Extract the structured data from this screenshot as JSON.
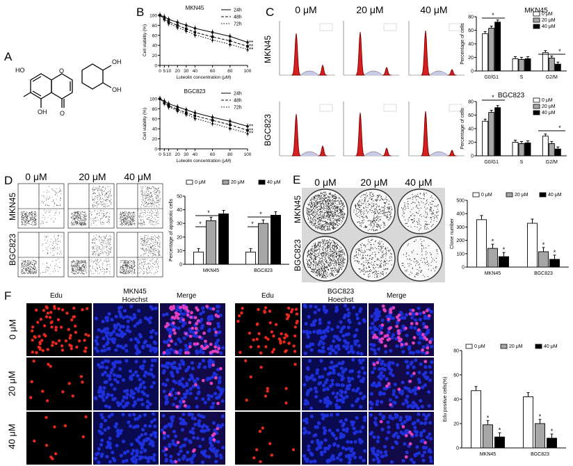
{
  "panels": {
    "A": {
      "label": "A"
    },
    "B": {
      "label": "B"
    },
    "C": {
      "label": "C"
    },
    "D": {
      "label": "D"
    },
    "E": {
      "label": "E"
    },
    "F": {
      "label": "F"
    }
  },
  "conditions": [
    "0 μM",
    "20 μM",
    "40 μM"
  ],
  "cells": [
    "MKN45",
    "BGC823"
  ],
  "panelC_rowlabels": [
    "MKN45",
    "BGC823"
  ],
  "panelD_rowlabels": [
    "MKN45",
    "BGC823"
  ],
  "panelE_rowlabels": [
    "MKN45",
    "BGC823"
  ],
  "panelF": {
    "mkn_title": "MKN45",
    "bgc_title": "BGC823",
    "col_edu": "Edu",
    "col_hoechst": "Hoechst",
    "col_merge": "Merge",
    "rowlabels": [
      "0 μM",
      "20 μM",
      "40 μM"
    ]
  },
  "structure": {
    "oh_labels": [
      "OH",
      "OH",
      "HO",
      "OH"
    ],
    "o_labels": [
      "O",
      "O"
    ]
  },
  "colors": {
    "histogram_red": "#d42020",
    "edu_red": "#e8281c",
    "hoechst_blue": "#1d2fd8",
    "bar_gray": "#a6a6a6",
    "bar_black": "#000000"
  },
  "chart_data": [
    {
      "id": "B-MKN45",
      "type": "line",
      "title": "MKN45",
      "xlabel": "Luteolin concentration (μM)",
      "ylabel": "Cell viability (%)",
      "x": [
        0,
        5,
        10,
        20,
        30,
        40,
        60,
        80,
        100
      ],
      "xticks": [
        "0",
        "5",
        "10",
        "20",
        "30",
        "40",
        "60",
        "80",
        "100"
      ],
      "ylim": [
        0,
        100
      ],
      "yticks": [
        "0",
        "20",
        "40",
        "60",
        "80",
        "100"
      ],
      "series": [
        {
          "name": "24h",
          "values": [
            100,
            97,
            92,
            86,
            80,
            74,
            66,
            58,
            46
          ]
        },
        {
          "name": "48h",
          "values": [
            100,
            94,
            87,
            80,
            73,
            66,
            57,
            49,
            38
          ]
        },
        {
          "name": "72h",
          "values": [
            100,
            92,
            84,
            76,
            69,
            61,
            51,
            42,
            32
          ]
        }
      ],
      "annotations": [
        "**",
        "**",
        "**"
      ]
    },
    {
      "id": "B-BGC823",
      "type": "line",
      "title": "BGC823",
      "xlabel": "Luteolin concentration (μM)",
      "ylabel": "Cell viability (%)",
      "x": [
        0,
        5,
        10,
        20,
        30,
        40,
        60,
        80,
        100
      ],
      "xticks": [
        "0",
        "5",
        "10",
        "20",
        "30",
        "40",
        "60",
        "80",
        "100"
      ],
      "ylim": [
        0,
        100
      ],
      "yticks": [
        "0",
        "20",
        "40",
        "60",
        "80",
        "100"
      ],
      "series": [
        {
          "name": "24h",
          "values": [
            100,
            95,
            90,
            84,
            78,
            72,
            63,
            55,
            45
          ]
        },
        {
          "name": "48h",
          "values": [
            100,
            93,
            86,
            79,
            72,
            66,
            57,
            48,
            37
          ]
        },
        {
          "name": "72h",
          "values": [
            100,
            91,
            84,
            76,
            69,
            61,
            51,
            41,
            31
          ]
        }
      ],
      "annotations": [
        "**",
        "**",
        "**"
      ]
    },
    {
      "id": "C-MKN45",
      "type": "bar",
      "title": "MKN45",
      "ylabel": "Percentage of cells",
      "categories": [
        "G0/G1",
        "S",
        "G2/M"
      ],
      "ylim": [
        0,
        80
      ],
      "yticks": [
        "0",
        "20",
        "40",
        "60",
        "80"
      ],
      "series": [
        {
          "name": "0 μM",
          "values": [
            55,
            18,
            27
          ]
        },
        {
          "name": "20 μM",
          "values": [
            63,
            17,
            19
          ]
        },
        {
          "name": "40 μM",
          "values": [
            72,
            18,
            10
          ]
        }
      ],
      "annotations": [
        "*",
        "*"
      ]
    },
    {
      "id": "C-BGC823",
      "type": "bar",
      "title": "BGC823",
      "ylabel": "Percentage of cells",
      "categories": [
        "G0/G1",
        "S",
        "G2/M"
      ],
      "ylim": [
        0,
        80
      ],
      "yticks": [
        "0",
        "20",
        "40",
        "60",
        "80"
      ],
      "series": [
        {
          "name": "0 μM",
          "values": [
            51,
            20,
            29
          ]
        },
        {
          "name": "20 μM",
          "values": [
            64,
            18,
            18
          ]
        },
        {
          "name": "40 μM",
          "values": [
            71,
            19,
            10
          ]
        }
      ],
      "annotations": [
        "*",
        "*"
      ]
    },
    {
      "id": "D",
      "type": "bar",
      "ylabel": "Percentage of apoptotic cells",
      "categories": [
        "MKN45",
        "BGC823"
      ],
      "ylim": [
        0,
        50
      ],
      "yticks": [
        "0",
        "10",
        "20",
        "30",
        "40",
        "50"
      ],
      "series": [
        {
          "name": "0 μM",
          "values": [
            9,
            9
          ]
        },
        {
          "name": "20 μM",
          "values": [
            32,
            30
          ]
        },
        {
          "name": "40 μM",
          "values": [
            37,
            36
          ]
        }
      ],
      "annotations": [
        "*",
        "*",
        "*",
        "*"
      ]
    },
    {
      "id": "E",
      "type": "bar",
      "ylabel": "Clone number",
      "categories": [
        "MKN45",
        "BGC823"
      ],
      "ylim": [
        0,
        500
      ],
      "yticks": [
        "0",
        "100",
        "200",
        "300",
        "400",
        "500"
      ],
      "series": [
        {
          "name": "0 μM",
          "values": [
            355,
            328
          ]
        },
        {
          "name": "20 μM",
          "values": [
            140,
            115
          ]
        },
        {
          "name": "40 μM",
          "values": [
            78,
            58
          ]
        }
      ],
      "annotations": [
        "*",
        "*",
        "*",
        "*"
      ]
    },
    {
      "id": "F",
      "type": "bar",
      "ylabel": "Edu positive cells(%)",
      "categories": [
        "MKN45",
        "BGC823"
      ],
      "ylim": [
        0,
        80
      ],
      "yticks": [
        "0",
        "20",
        "40",
        "60",
        "80"
      ],
      "series": [
        {
          "name": "0 μM",
          "values": [
            47,
            42
          ]
        },
        {
          "name": "20 μM",
          "values": [
            19,
            20
          ]
        },
        {
          "name": "40 μM",
          "values": [
            9,
            8
          ]
        }
      ],
      "annotations": [
        "*",
        "*",
        "*",
        "*"
      ]
    }
  ]
}
